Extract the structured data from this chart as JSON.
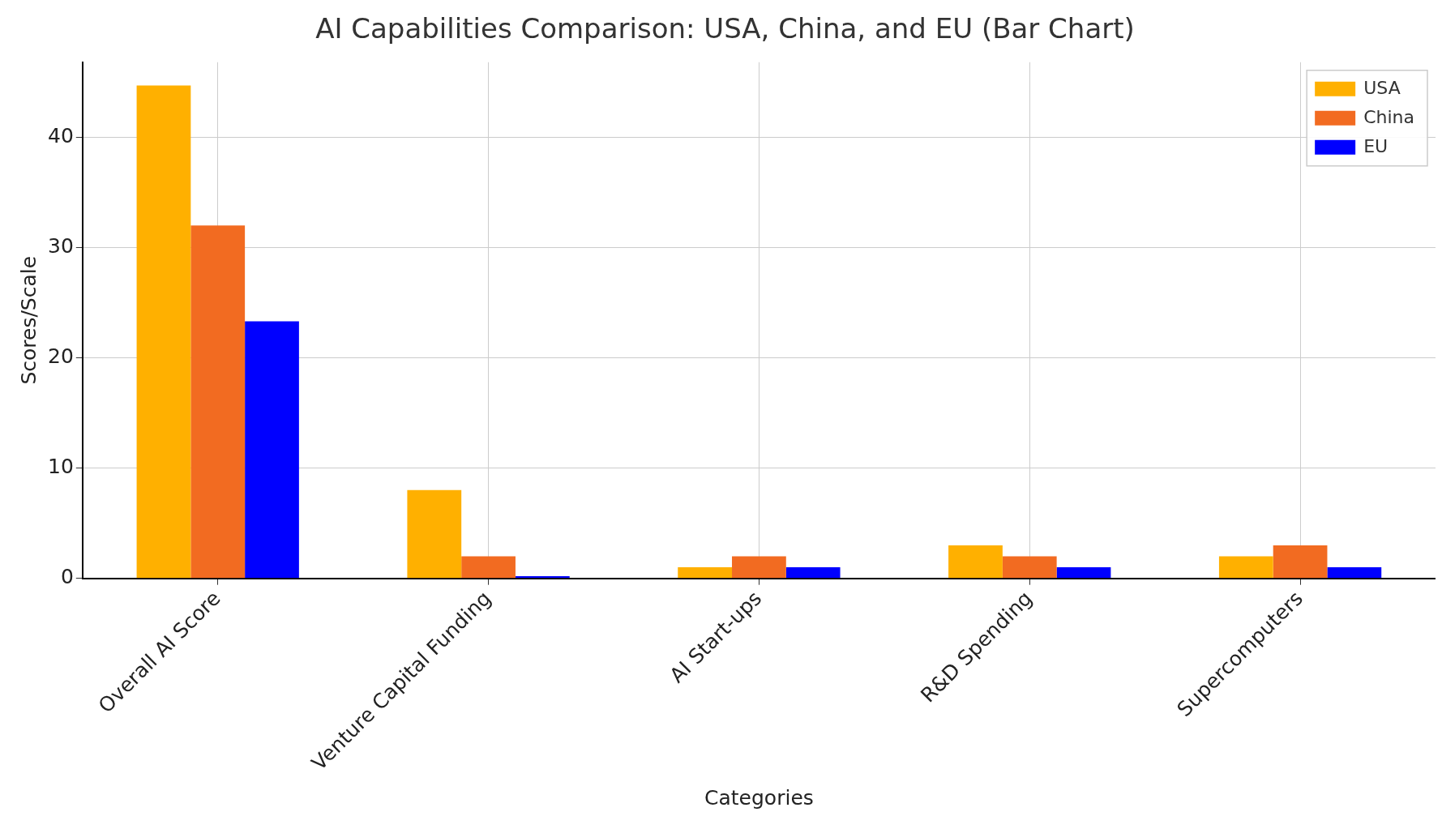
{
  "chart_data": {
    "type": "bar",
    "title": "AI Capabilities Comparison: USA, China, and EU (Bar Chart)",
    "xlabel": "Categories",
    "ylabel": "Scores/Scale",
    "categories": [
      "Overall AI Score",
      "Venture Capital Funding",
      "AI Start-ups",
      "R&D Spending",
      "Supercomputers"
    ],
    "series": [
      {
        "name": "USA",
        "color": "#ffb000",
        "values": [
          44.7,
          8,
          1,
          3,
          2
        ]
      },
      {
        "name": "China",
        "color": "#f26b21",
        "values": [
          32,
          2,
          2,
          2,
          3
        ]
      },
      {
        "name": "EU",
        "color": "#0000ff",
        "values": [
          23.3,
          0.2,
          1,
          1,
          1
        ]
      }
    ],
    "ylim": [
      0,
      46.8
    ],
    "yticks": [
      0,
      10,
      20,
      30,
      40
    ],
    "grid": true,
    "legend": "top right"
  }
}
